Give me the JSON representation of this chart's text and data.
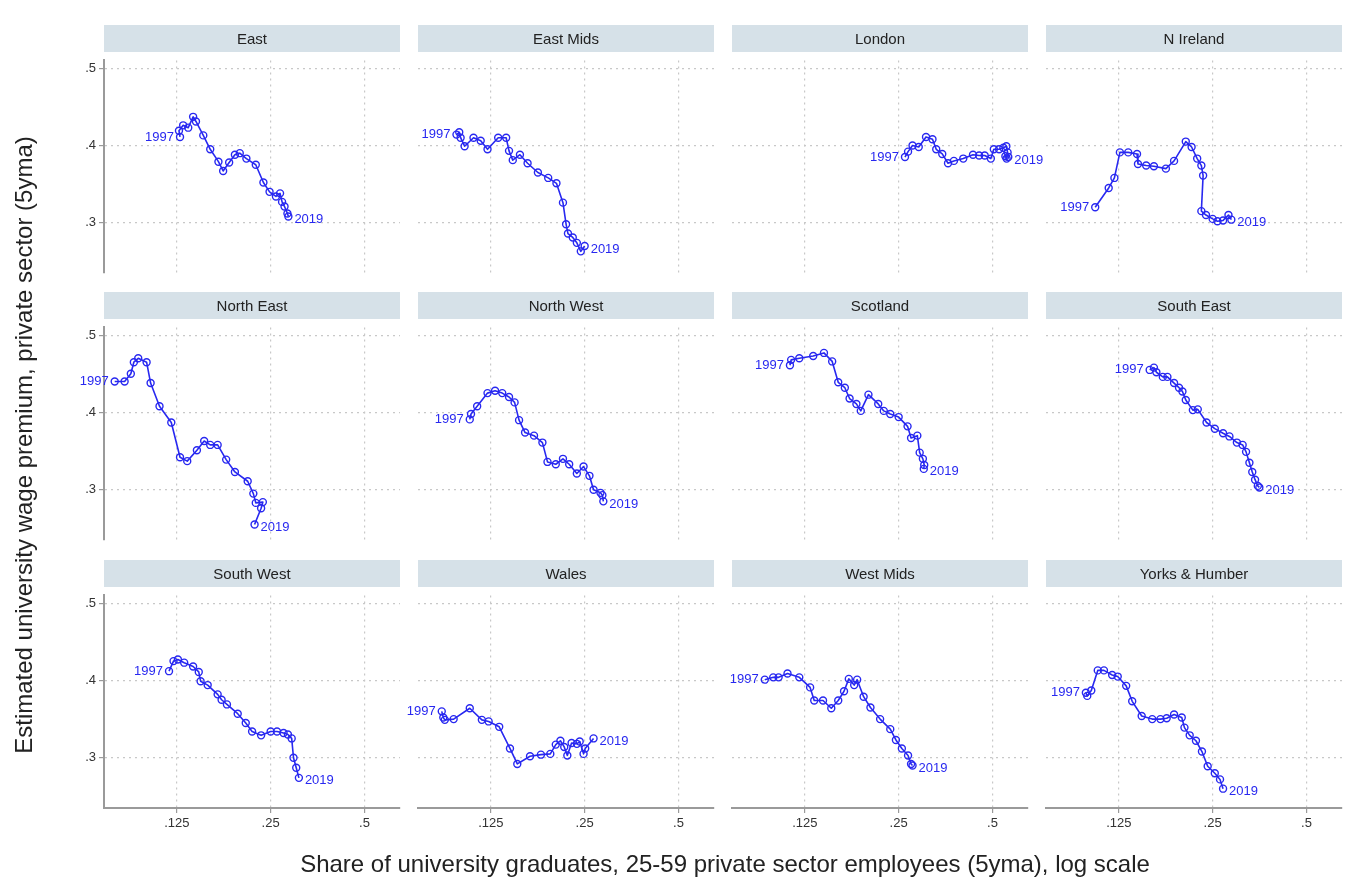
{
  "chart_data": [
    {
      "type": "line",
      "title": "East",
      "ylabel": "Estimated university wage premium, private sector (5yma)",
      "xlabel": "Share of university graduates, 25-59 private sector employees (5yma), log scale",
      "log": "x",
      "marker": "circle",
      "grid": true,
      "tick_labels": "y",
      "xlim": [
        0.073,
        0.65
      ],
      "ylim": [
        0.235,
        0.51
      ],
      "xticks": [
        {
          "value": 0.125,
          "label": null
        },
        {
          "value": 0.25,
          "label": null
        },
        {
          "value": 0.5,
          "label": null
        }
      ],
      "yticks": [
        {
          "value": 0.3,
          "label": ".3"
        },
        {
          "value": 0.4,
          "label": ".4"
        },
        {
          "value": 0.5,
          "label": ".5"
        }
      ],
      "x": [
        0.128,
        0.127,
        0.131,
        0.136,
        0.141,
        0.144,
        0.152,
        0.16,
        0.17,
        0.176,
        0.184,
        0.192,
        0.199,
        0.209,
        0.224,
        0.237,
        0.248,
        0.26,
        0.268,
        0.272,
        0.277,
        0.283,
        0.285
      ],
      "series": [
        {
          "color": "#2828f0",
          "values": [
            0.411,
            0.419,
            0.426,
            0.423,
            0.437,
            0.431,
            0.413,
            0.395,
            0.379,
            0.367,
            0.378,
            0.388,
            0.39,
            0.383,
            0.375,
            0.352,
            0.34,
            0.334,
            0.338,
            0.327,
            0.321,
            0.312,
            0.308
          ]
        }
      ],
      "annotations": [
        {
          "text": "1997",
          "x": 0.128,
          "y": 0.411
        },
        {
          "text": "2019",
          "x": 0.285,
          "y": 0.308
        }
      ]
    },
    {
      "type": "line",
      "title": "East Mids",
      "log": "x",
      "marker": "circle",
      "grid": true,
      "tick_labels": false,
      "xlim": [
        0.073,
        0.65
      ],
      "ylim": [
        0.235,
        0.51
      ],
      "xticks": [
        {
          "value": 0.125,
          "label": null
        },
        {
          "value": 0.25,
          "label": null
        },
        {
          "value": 0.5,
          "label": null
        }
      ],
      "yticks": [
        {
          "value": 0.3,
          "label": null
        },
        {
          "value": 0.4,
          "label": null
        },
        {
          "value": 0.5,
          "label": null
        }
      ],
      "x": [
        0.097,
        0.099,
        0.1,
        0.103,
        0.11,
        0.116,
        0.122,
        0.132,
        0.14,
        0.143,
        0.147,
        0.155,
        0.164,
        0.177,
        0.191,
        0.203,
        0.213,
        0.218,
        0.221,
        0.229,
        0.236,
        0.243,
        0.25
      ],
      "series": [
        {
          "color": "#2828f0",
          "values": [
            0.414,
            0.417,
            0.41,
            0.399,
            0.41,
            0.406,
            0.395,
            0.41,
            0.41,
            0.393,
            0.381,
            0.388,
            0.377,
            0.365,
            0.358,
            0.351,
            0.326,
            0.298,
            0.286,
            0.281,
            0.274,
            0.263,
            0.27
          ]
        }
      ],
      "annotations": [
        {
          "text": "1997",
          "x": 0.097,
          "y": 0.414
        },
        {
          "text": "2019",
          "x": 0.25,
          "y": 0.27
        }
      ]
    },
    {
      "type": "line",
      "title": "London",
      "log": "x",
      "marker": "circle",
      "grid": true,
      "tick_labels": false,
      "xlim": [
        0.073,
        0.65
      ],
      "ylim": [
        0.235,
        0.51
      ],
      "xticks": [
        {
          "value": 0.125,
          "label": null
        },
        {
          "value": 0.25,
          "label": null
        },
        {
          "value": 0.5,
          "label": null
        }
      ],
      "yticks": [
        {
          "value": 0.3,
          "label": null
        },
        {
          "value": 0.4,
          "label": null
        },
        {
          "value": 0.5,
          "label": null
        }
      ],
      "x": [
        0.262,
        0.268,
        0.277,
        0.29,
        0.306,
        0.321,
        0.33,
        0.345,
        0.36,
        0.376,
        0.403,
        0.433,
        0.453,
        0.472,
        0.494,
        0.505,
        0.525,
        0.542,
        0.554,
        0.559,
        0.555,
        0.55,
        0.562
      ],
      "series": [
        {
          "color": "#2828f0",
          "values": [
            0.385,
            0.392,
            0.4,
            0.398,
            0.411,
            0.408,
            0.395,
            0.389,
            0.377,
            0.38,
            0.383,
            0.388,
            0.387,
            0.387,
            0.383,
            0.395,
            0.395,
            0.397,
            0.399,
            0.391,
            0.383,
            0.386,
            0.385
          ]
        }
      ],
      "annotations": [
        {
          "text": "1997",
          "x": 0.262,
          "y": 0.385
        },
        {
          "text": "2019",
          "x": 0.562,
          "y": 0.385
        }
      ]
    },
    {
      "type": "line",
      "title": "N Ireland",
      "log": "x",
      "marker": "circle",
      "grid": true,
      "tick_labels": false,
      "xlim": [
        0.073,
        0.65
      ],
      "ylim": [
        0.235,
        0.51
      ],
      "xticks": [
        {
          "value": 0.125,
          "label": null
        },
        {
          "value": 0.25,
          "label": null
        },
        {
          "value": 0.5,
          "label": null
        }
      ],
      "yticks": [
        {
          "value": 0.3,
          "label": null
        },
        {
          "value": 0.4,
          "label": null
        },
        {
          "value": 0.5,
          "label": null
        }
      ],
      "x": [
        0.105,
        0.116,
        0.121,
        0.126,
        0.134,
        0.143,
        0.144,
        0.153,
        0.162,
        0.177,
        0.188,
        0.205,
        0.214,
        0.223,
        0.23,
        0.233,
        0.23,
        0.238,
        0.25,
        0.259,
        0.27,
        0.281,
        0.287
      ],
      "series": [
        {
          "color": "#2828f0",
          "values": [
            0.32,
            0.345,
            0.358,
            0.391,
            0.391,
            0.389,
            0.376,
            0.374,
            0.373,
            0.37,
            0.38,
            0.405,
            0.398,
            0.383,
            0.374,
            0.361,
            0.315,
            0.31,
            0.305,
            0.302,
            0.303,
            0.31,
            0.304
          ]
        }
      ],
      "annotations": [
        {
          "text": "1997",
          "x": 0.105,
          "y": 0.32
        },
        {
          "text": "2019",
          "x": 0.287,
          "y": 0.304
        }
      ]
    },
    {
      "type": "line",
      "title": "North East",
      "log": "x",
      "marker": "circle",
      "grid": true,
      "tick_labels": "y",
      "xlim": [
        0.073,
        0.65
      ],
      "ylim": [
        0.235,
        0.51
      ],
      "xticks": [
        {
          "value": 0.125,
          "label": null
        },
        {
          "value": 0.25,
          "label": null
        },
        {
          "value": 0.5,
          "label": null
        }
      ],
      "yticks": [
        {
          "value": 0.3,
          "label": ".3"
        },
        {
          "value": 0.4,
          "label": ".4"
        },
        {
          "value": 0.5,
          "label": ".5"
        }
      ],
      "x": [
        0.079,
        0.085,
        0.089,
        0.091,
        0.094,
        0.1,
        0.103,
        0.11,
        0.12,
        0.128,
        0.135,
        0.145,
        0.153,
        0.16,
        0.169,
        0.18,
        0.192,
        0.211,
        0.22,
        0.224,
        0.236,
        0.233,
        0.222
      ],
      "series": [
        {
          "color": "#2828f0",
          "values": [
            0.44,
            0.44,
            0.45,
            0.465,
            0.47,
            0.465,
            0.438,
            0.408,
            0.387,
            0.342,
            0.337,
            0.351,
            0.363,
            0.358,
            0.358,
            0.339,
            0.323,
            0.311,
            0.295,
            0.283,
            0.284,
            0.276,
            0.255
          ]
        }
      ],
      "annotations": [
        {
          "text": "1997",
          "x": 0.079,
          "y": 0.44
        },
        {
          "text": "2019",
          "x": 0.222,
          "y": 0.255
        }
      ]
    },
    {
      "type": "line",
      "title": "North West",
      "log": "x",
      "marker": "circle",
      "grid": true,
      "tick_labels": false,
      "xlim": [
        0.073,
        0.65
      ],
      "ylim": [
        0.235,
        0.51
      ],
      "xticks": [
        {
          "value": 0.125,
          "label": null
        },
        {
          "value": 0.25,
          "label": null
        },
        {
          "value": 0.5,
          "label": null
        }
      ],
      "yticks": [
        {
          "value": 0.3,
          "label": null
        },
        {
          "value": 0.4,
          "label": null
        },
        {
          "value": 0.5,
          "label": null
        }
      ],
      "x": [
        0.107,
        0.108,
        0.113,
        0.122,
        0.129,
        0.136,
        0.143,
        0.149,
        0.154,
        0.161,
        0.172,
        0.183,
        0.19,
        0.202,
        0.213,
        0.223,
        0.236,
        0.248,
        0.259,
        0.267,
        0.281,
        0.285,
        0.287
      ],
      "series": [
        {
          "color": "#2828f0",
          "values": [
            0.391,
            0.398,
            0.408,
            0.425,
            0.428,
            0.425,
            0.42,
            0.413,
            0.39,
            0.374,
            0.37,
            0.361,
            0.336,
            0.333,
            0.34,
            0.333,
            0.321,
            0.33,
            0.318,
            0.3,
            0.296,
            0.293,
            0.285
          ]
        }
      ],
      "annotations": [
        {
          "text": "1997",
          "x": 0.107,
          "y": 0.391
        },
        {
          "text": "2019",
          "x": 0.287,
          "y": 0.285
        }
      ]
    },
    {
      "type": "line",
      "title": "Scotland",
      "log": "x",
      "marker": "circle",
      "grid": true,
      "tick_labels": false,
      "xlim": [
        0.073,
        0.65
      ],
      "ylim": [
        0.235,
        0.51
      ],
      "xticks": [
        {
          "value": 0.125,
          "label": null
        },
        {
          "value": 0.25,
          "label": null
        },
        {
          "value": 0.5,
          "label": null
        }
      ],
      "yticks": [
        {
          "value": 0.3,
          "label": null
        },
        {
          "value": 0.4,
          "label": null
        },
        {
          "value": 0.5,
          "label": null
        }
      ],
      "x": [
        0.112,
        0.113,
        0.12,
        0.133,
        0.144,
        0.153,
        0.16,
        0.168,
        0.174,
        0.183,
        0.189,
        0.2,
        0.215,
        0.224,
        0.235,
        0.25,
        0.267,
        0.274,
        0.287,
        0.292,
        0.299,
        0.302,
        0.301
      ],
      "series": [
        {
          "color": "#2828f0",
          "values": [
            0.461,
            0.468,
            0.47,
            0.473,
            0.477,
            0.466,
            0.439,
            0.432,
            0.418,
            0.411,
            0.402,
            0.423,
            0.411,
            0.402,
            0.398,
            0.394,
            0.382,
            0.367,
            0.37,
            0.348,
            0.34,
            0.332,
            0.327
          ]
        }
      ],
      "annotations": [
        {
          "text": "1997",
          "x": 0.112,
          "y": 0.461
        },
        {
          "text": "2019",
          "x": 0.301,
          "y": 0.327
        }
      ]
    },
    {
      "type": "line",
      "title": "South East",
      "log": "x",
      "marker": "circle",
      "grid": true,
      "tick_labels": false,
      "xlim": [
        0.073,
        0.65
      ],
      "ylim": [
        0.235,
        0.51
      ],
      "xticks": [
        {
          "value": 0.125,
          "label": null
        },
        {
          "value": 0.25,
          "label": null
        },
        {
          "value": 0.5,
          "label": null
        }
      ],
      "yticks": [
        {
          "value": 0.3,
          "label": null
        },
        {
          "value": 0.4,
          "label": null
        },
        {
          "value": 0.5,
          "label": null
        }
      ],
      "x": [
        0.157,
        0.162,
        0.165,
        0.173,
        0.179,
        0.188,
        0.195,
        0.2,
        0.205,
        0.216,
        0.224,
        0.239,
        0.254,
        0.27,
        0.283,
        0.299,
        0.312,
        0.32,
        0.328,
        0.335,
        0.342,
        0.349,
        0.353
      ],
      "series": [
        {
          "color": "#2828f0",
          "values": [
            0.455,
            0.458,
            0.452,
            0.446,
            0.446,
            0.438,
            0.432,
            0.427,
            0.416,
            0.403,
            0.404,
            0.387,
            0.379,
            0.373,
            0.369,
            0.361,
            0.358,
            0.349,
            0.335,
            0.323,
            0.313,
            0.305,
            0.303
          ]
        }
      ],
      "annotations": [
        {
          "text": "1997",
          "x": 0.157,
          "y": 0.455
        },
        {
          "text": "2019",
          "x": 0.353,
          "y": 0.303
        }
      ]
    },
    {
      "type": "line",
      "title": "South West",
      "log": "x",
      "marker": "circle",
      "grid": true,
      "xlim": [
        0.073,
        0.65
      ],
      "ylim": [
        0.235,
        0.51
      ],
      "xticks": [
        {
          "value": 0.125,
          "label": ".125"
        },
        {
          "value": 0.25,
          "label": ".25"
        },
        {
          "value": 0.5,
          "label": ".5"
        }
      ],
      "yticks": [
        {
          "value": 0.3,
          "label": ".3"
        },
        {
          "value": 0.4,
          "label": ".4"
        },
        {
          "value": 0.5,
          "label": ".5"
        }
      ],
      "x": [
        0.118,
        0.122,
        0.126,
        0.132,
        0.141,
        0.147,
        0.149,
        0.157,
        0.169,
        0.174,
        0.181,
        0.196,
        0.208,
        0.218,
        0.233,
        0.25,
        0.262,
        0.275,
        0.284,
        0.292,
        0.296,
        0.302,
        0.308
      ],
      "series": [
        {
          "color": "#2828f0",
          "values": [
            0.412,
            0.425,
            0.427,
            0.423,
            0.418,
            0.411,
            0.399,
            0.394,
            0.382,
            0.375,
            0.369,
            0.357,
            0.345,
            0.334,
            0.329,
            0.334,
            0.334,
            0.332,
            0.33,
            0.325,
            0.3,
            0.287,
            0.274
          ]
        }
      ],
      "annotations": [
        {
          "text": "1997",
          "x": 0.118,
          "y": 0.412
        },
        {
          "text": "2019",
          "x": 0.308,
          "y": 0.274
        }
      ]
    },
    {
      "type": "line",
      "title": "Wales",
      "log": "x",
      "marker": "circle",
      "grid": true,
      "tick_labels": "x",
      "xlim": [
        0.073,
        0.65
      ],
      "ylim": [
        0.235,
        0.51
      ],
      "xticks": [
        {
          "value": 0.125,
          "label": ".125"
        },
        {
          "value": 0.25,
          "label": ".25"
        },
        {
          "value": 0.5,
          "label": ".5"
        }
      ],
      "yticks": [
        {
          "value": 0.3,
          "label": null
        },
        {
          "value": 0.4,
          "label": null
        },
        {
          "value": 0.5,
          "label": null
        }
      ],
      "x": [
        0.087,
        0.088,
        0.089,
        0.095,
        0.107,
        0.117,
        0.123,
        0.133,
        0.144,
        0.152,
        0.167,
        0.181,
        0.194,
        0.202,
        0.209,
        0.215,
        0.22,
        0.227,
        0.236,
        0.241,
        0.248,
        0.251,
        0.267
      ],
      "series": [
        {
          "color": "#2828f0",
          "values": [
            0.36,
            0.352,
            0.349,
            0.35,
            0.364,
            0.349,
            0.347,
            0.34,
            0.312,
            0.292,
            0.302,
            0.304,
            0.305,
            0.317,
            0.322,
            0.314,
            0.303,
            0.319,
            0.318,
            0.321,
            0.305,
            0.312,
            0.325
          ]
        }
      ],
      "annotations": [
        {
          "text": "1997",
          "x": 0.087,
          "y": 0.36
        },
        {
          "text": "2019",
          "x": 0.267,
          "y": 0.325
        }
      ]
    },
    {
      "type": "line",
      "title": "West Mids",
      "log": "x",
      "marker": "circle",
      "grid": true,
      "tick_labels": "x",
      "xlim": [
        0.073,
        0.65
      ],
      "ylim": [
        0.235,
        0.51
      ],
      "xticks": [
        {
          "value": 0.125,
          "label": ".125"
        },
        {
          "value": 0.25,
          "label": ".25"
        },
        {
          "value": 0.5,
          "label": ".5"
        }
      ],
      "yticks": [
        {
          "value": 0.3,
          "label": null
        },
        {
          "value": 0.4,
          "label": null
        },
        {
          "value": 0.5,
          "label": null
        }
      ],
      "x": [
        0.093,
        0.099,
        0.103,
        0.11,
        0.12,
        0.13,
        0.134,
        0.143,
        0.152,
        0.16,
        0.167,
        0.173,
        0.18,
        0.184,
        0.193,
        0.203,
        0.218,
        0.235,
        0.245,
        0.256,
        0.268,
        0.274,
        0.277
      ],
      "series": [
        {
          "color": "#2828f0",
          "values": [
            0.401,
            0.404,
            0.404,
            0.409,
            0.404,
            0.391,
            0.374,
            0.374,
            0.364,
            0.374,
            0.386,
            0.402,
            0.394,
            0.401,
            0.379,
            0.365,
            0.35,
            0.337,
            0.323,
            0.312,
            0.303,
            0.292,
            0.29
          ]
        }
      ],
      "annotations": [
        {
          "text": "1997",
          "x": 0.093,
          "y": 0.401
        },
        {
          "text": "2019",
          "x": 0.277,
          "y": 0.29
        }
      ]
    },
    {
      "type": "line",
      "title": "Yorks & Humber",
      "log": "x",
      "marker": "circle",
      "grid": true,
      "tick_labels": "x",
      "xlim": [
        0.073,
        0.65
      ],
      "ylim": [
        0.235,
        0.51
      ],
      "xticks": [
        {
          "value": 0.125,
          "label": ".125"
        },
        {
          "value": 0.25,
          "label": ".25"
        },
        {
          "value": 0.5,
          "label": ".5"
        }
      ],
      "yticks": [
        {
          "value": 0.3,
          "label": null
        },
        {
          "value": 0.4,
          "label": null
        },
        {
          "value": 0.5,
          "label": null
        }
      ],
      "x": [
        0.098,
        0.099,
        0.102,
        0.107,
        0.112,
        0.119,
        0.124,
        0.132,
        0.138,
        0.148,
        0.16,
        0.17,
        0.178,
        0.188,
        0.199,
        0.203,
        0.211,
        0.221,
        0.231,
        0.241,
        0.254,
        0.264,
        0.27
      ],
      "series": [
        {
          "color": "#2828f0",
          "values": [
            0.384,
            0.38,
            0.387,
            0.413,
            0.413,
            0.407,
            0.405,
            0.393,
            0.373,
            0.354,
            0.35,
            0.35,
            0.351,
            0.356,
            0.352,
            0.339,
            0.329,
            0.322,
            0.308,
            0.289,
            0.28,
            0.272,
            0.26
          ]
        }
      ],
      "annotations": [
        {
          "text": "1997",
          "x": 0.098,
          "y": 0.384
        },
        {
          "text": "2019",
          "x": 0.27,
          "y": 0.26
        }
      ]
    }
  ]
}
